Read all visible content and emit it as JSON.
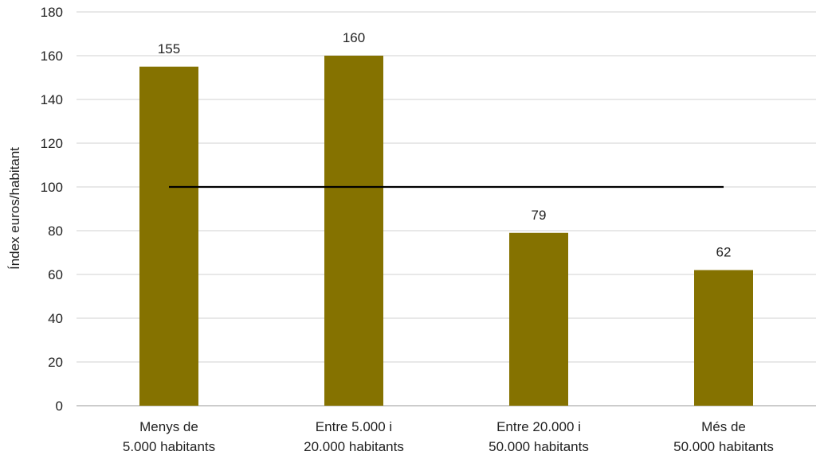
{
  "chart_data": {
    "type": "bar",
    "title": "",
    "xlabel": "",
    "ylabel": "Índex euros/habitant",
    "categories": [
      [
        "Menys de",
        "5.000 habitants"
      ],
      [
        "Entre 5.000 i",
        "20.000 habitants"
      ],
      [
        "Entre 20.000 i",
        "50.000 habitants"
      ],
      [
        "Més de",
        "50.000 habitants"
      ]
    ],
    "values": [
      155,
      160,
      79,
      62
    ],
    "data_labels": [
      "155",
      "160",
      "79",
      "62"
    ],
    "reference_line": {
      "value": 100
    },
    "ylim": [
      0,
      180
    ],
    "yticks": [
      0,
      20,
      40,
      60,
      80,
      100,
      120,
      140,
      160,
      180
    ],
    "grid": true,
    "legend": "none",
    "bar_color": "#857200",
    "line_color": "#000000",
    "grid_color": "#d0d0d0"
  }
}
